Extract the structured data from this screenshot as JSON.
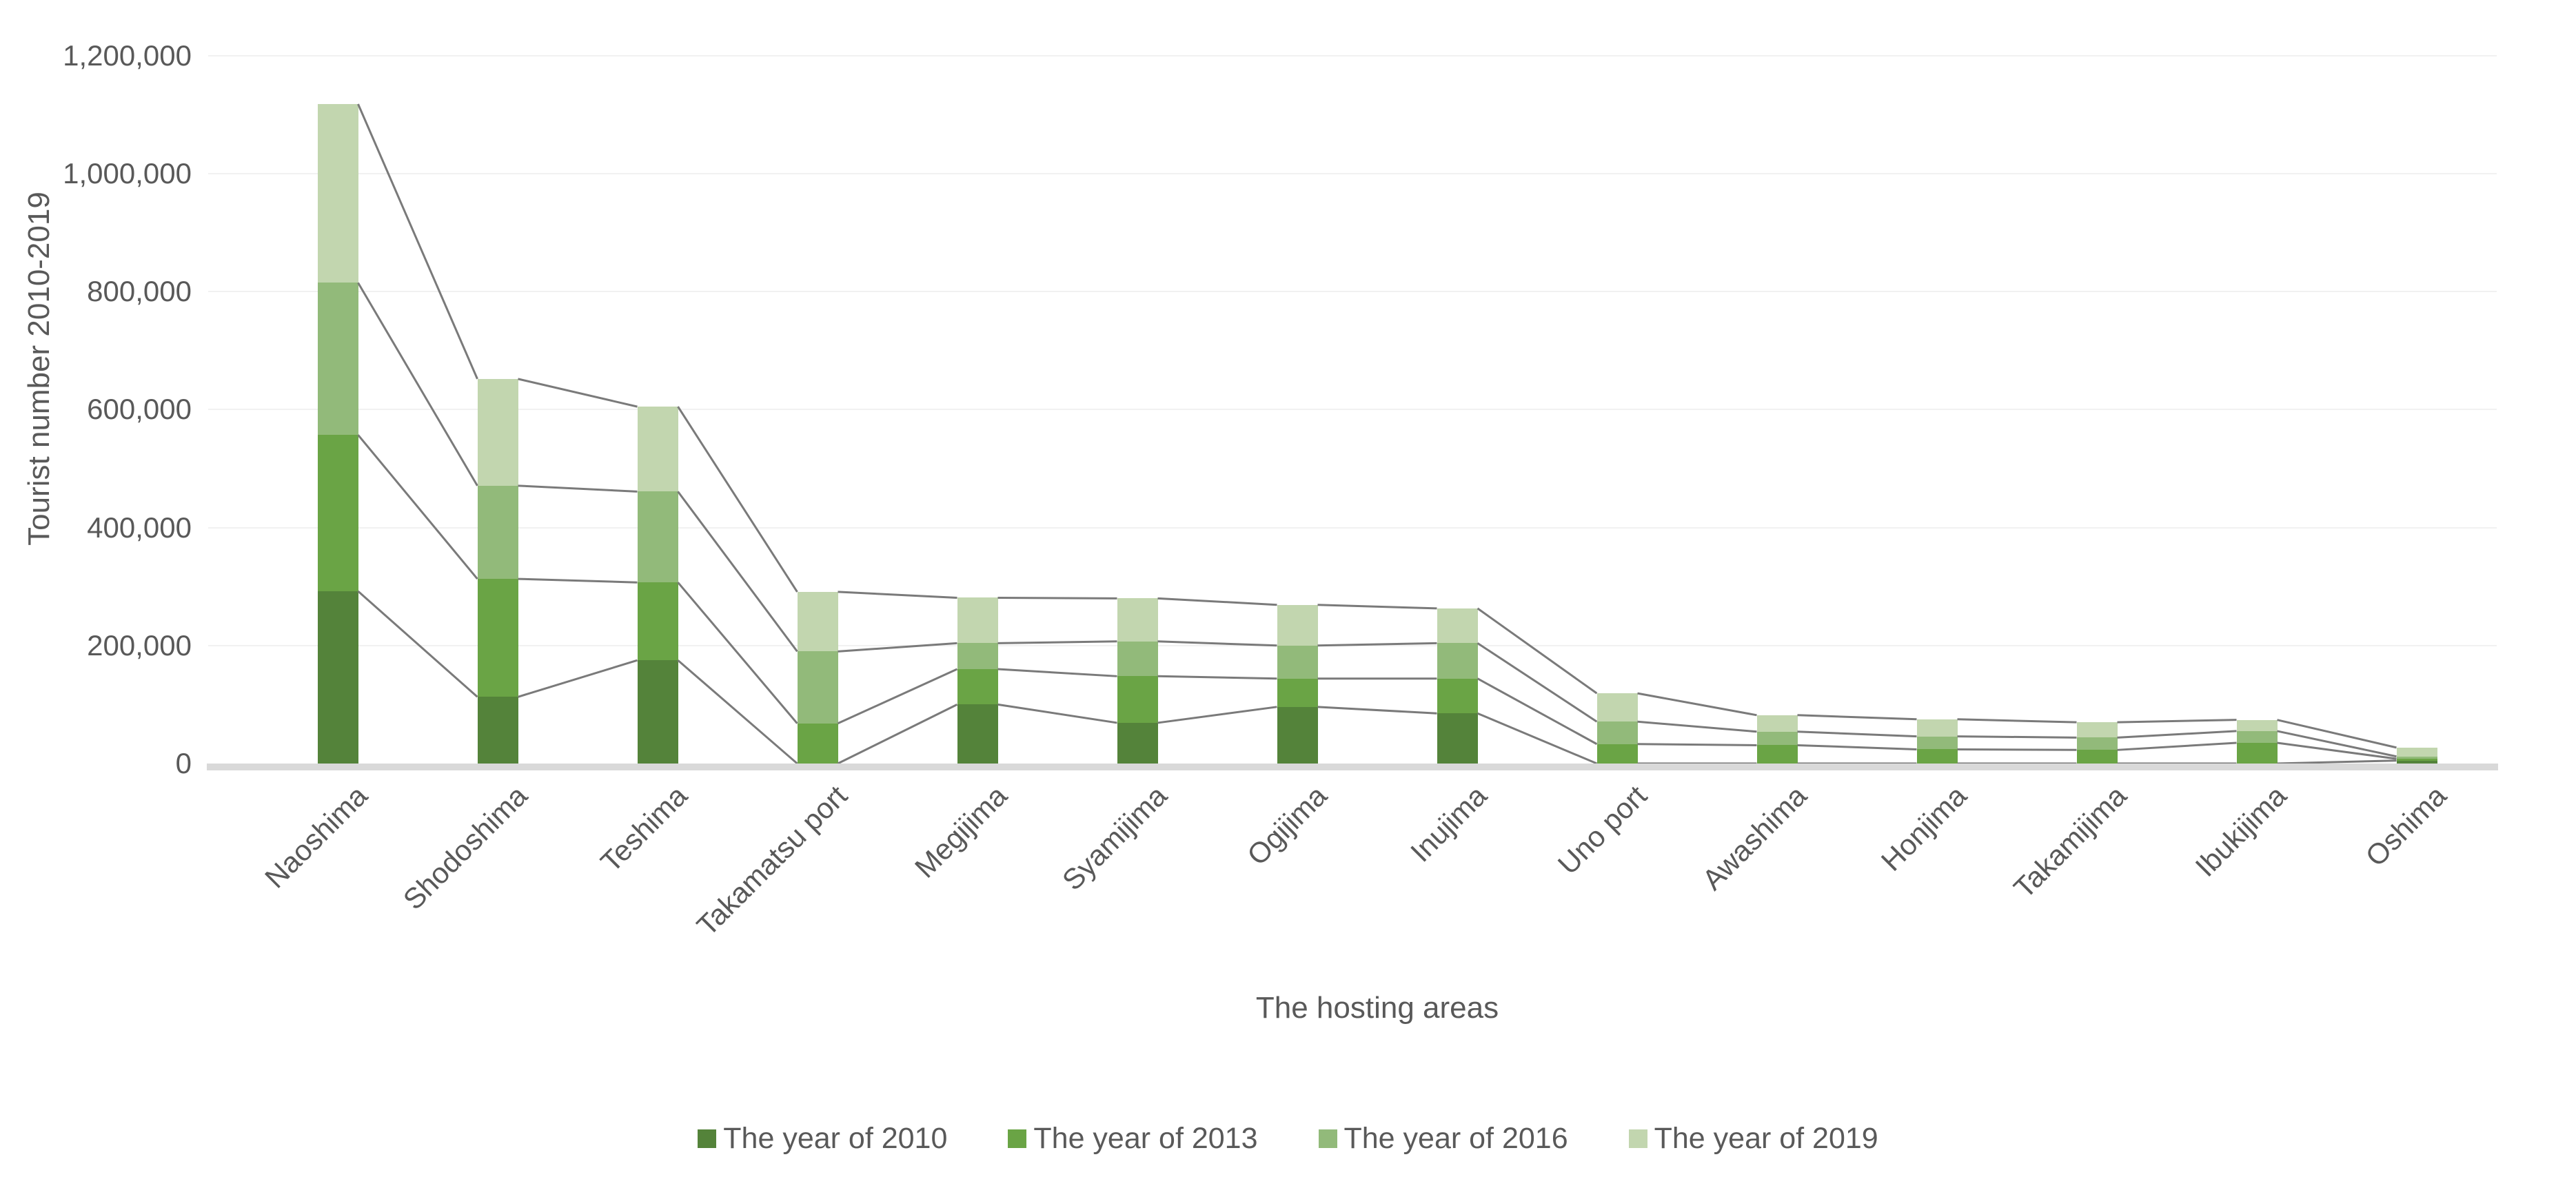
{
  "chart_data": {
    "type": "bar",
    "variant": "stacked-column-with-series-lines",
    "xlabel": "The hosting areas",
    "ylabel": "Tourist number 2010-2019",
    "categories": [
      "Naoshima",
      "Shodoshima",
      "Teshima",
      "Takamatsu port",
      "Megijima",
      "Syamijima",
      "Ogijima",
      "Inujima",
      "Uno port",
      "Awashima",
      "Honjima",
      "Takamijima",
      "Ibukijima",
      "Oshima"
    ],
    "series": [
      {
        "name": "The year of 2010",
        "color": "#54833A",
        "values": [
          292000,
          113000,
          175000,
          0,
          100000,
          69000,
          96000,
          85000,
          0,
          0,
          0,
          0,
          0,
          5000
        ]
      },
      {
        "name": "The year of 2013",
        "color": "#6AA445",
        "values": [
          265000,
          200000,
          132000,
          68000,
          60000,
          79000,
          48000,
          59000,
          33000,
          31000,
          24000,
          23000,
          35000,
          3000
        ]
      },
      {
        "name": "The year of 2016",
        "color": "#92BA7A",
        "values": [
          258000,
          158000,
          154000,
          122000,
          44000,
          59000,
          56000,
          60000,
          38000,
          23000,
          22000,
          21000,
          20000,
          4000
        ]
      },
      {
        "name": "The year of 2019",
        "color": "#C2D6AF",
        "values": [
          303000,
          181000,
          144000,
          101000,
          77000,
          73000,
          69000,
          59000,
          48000,
          28000,
          29000,
          26000,
          19000,
          15000
        ]
      }
    ],
    "ylim": [
      0,
      1200000
    ],
    "ytick_step": 200000,
    "ytick_labels": [
      "0",
      "200,000",
      "400,000",
      "600,000",
      "800,000",
      "1,000,000",
      "1,200,000"
    ],
    "grid": "horizontal",
    "legend_position": "bottom",
    "series_lines": true
  },
  "style": {
    "background": "#FFFFFF",
    "text_color": "#595959",
    "gridline_color": "#F1F1F1",
    "axis_line_color": "#D9D9D9",
    "series_line_color": "#7A7A7A"
  }
}
